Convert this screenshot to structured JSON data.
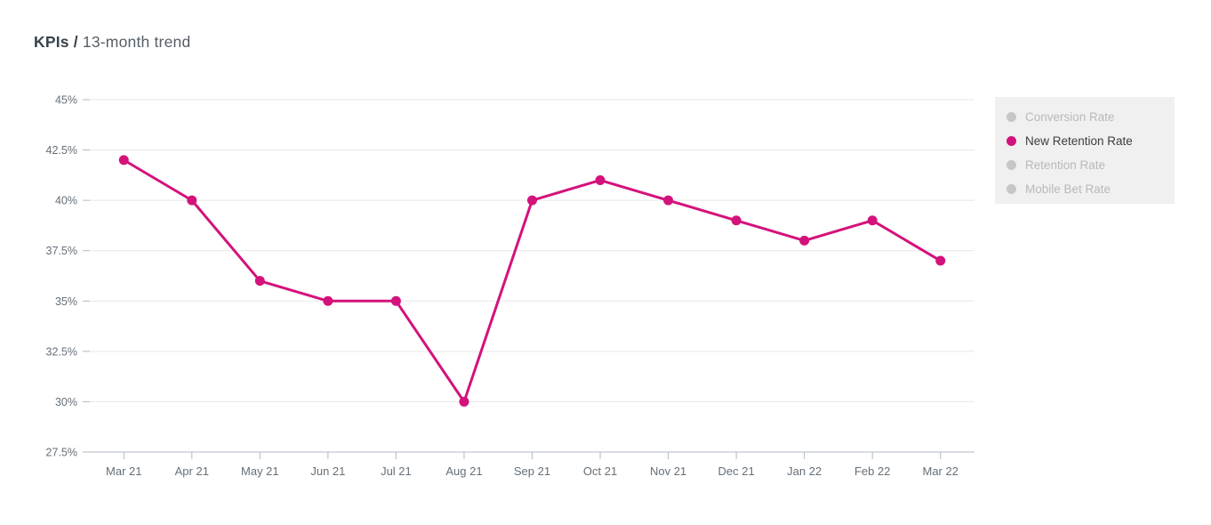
{
  "title": {
    "primary": "KPIs /",
    "secondary": "13-month trend"
  },
  "legend": {
    "items": [
      {
        "label": "Conversion Rate",
        "active": false
      },
      {
        "label": "New Retention Rate",
        "active": true
      },
      {
        "label": "Retention Rate",
        "active": false
      },
      {
        "label": "Mobile Bet Rate",
        "active": false
      }
    ]
  },
  "chart_data": {
    "type": "line",
    "title": "KPIs / 13-month trend",
    "categories": [
      "Mar 21",
      "Apr 21",
      "May 21",
      "Jun 21",
      "Jul 21",
      "Aug 21",
      "Sep 21",
      "Oct 21",
      "Nov 21",
      "Dec 21",
      "Jan 22",
      "Feb 22",
      "Mar 22"
    ],
    "series": [
      {
        "name": "New Retention Rate",
        "unit": "%",
        "values": [
          42,
          40,
          36,
          35,
          35,
          30,
          40,
          41,
          40,
          39,
          38,
          39,
          37
        ]
      }
    ],
    "xlabel": "",
    "ylabel": "",
    "ylim": [
      27.5,
      45
    ],
    "ytick_step": 2.5,
    "ytick_labels": [
      "27.5%",
      "30%",
      "32.5%",
      "35%",
      "37.5%",
      "40%",
      "42.5%",
      "45%"
    ],
    "grid": "horizontal",
    "legend_position": "right",
    "markers": true
  },
  "colors": {
    "accent": "#d4127b",
    "grid": "#e7e7e7",
    "axis_line": "#b0bac3",
    "axis_label": "#656f78",
    "legend_bg": "#f0f0f0",
    "legend_inactive_text": "#b9b9b9",
    "legend_inactive_dot": "#c6c6c6",
    "legend_active_text": "#3d3d3d",
    "title_primary": "#38424b",
    "title_secondary": "#555e66"
  }
}
